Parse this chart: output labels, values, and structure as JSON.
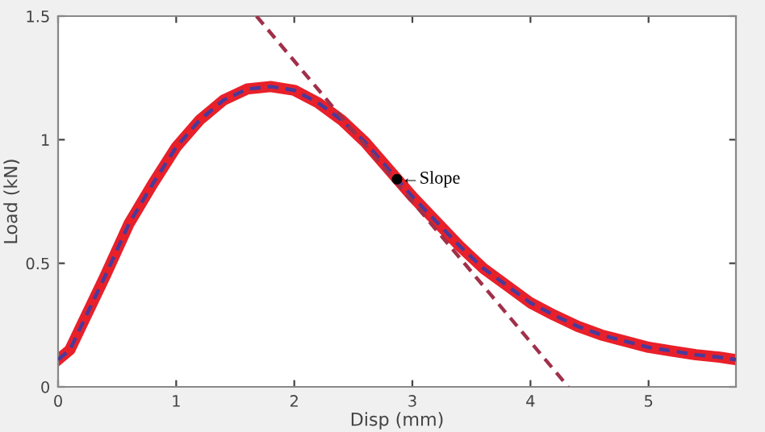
{
  "chart_data": {
    "type": "line",
    "xlabel": "Disp (mm)",
    "ylabel": "Load (kN)",
    "xlim": [
      0,
      5.74
    ],
    "ylim": [
      0,
      1.5
    ],
    "xticks": [
      0,
      1,
      2,
      3,
      4,
      5
    ],
    "yticks": [
      0,
      0.5,
      1,
      1.5
    ],
    "grid": false,
    "legend": false,
    "series": [
      {
        "color": "#e8202a",
        "line_style": "solid",
        "x": [
          0,
          0.1,
          0.2,
          0.4,
          0.6,
          0.8,
          1.0,
          1.2,
          1.4,
          1.6,
          1.8,
          2.0,
          2.2,
          2.4,
          2.6,
          2.8,
          3.0,
          3.2,
          3.4,
          3.6,
          3.8,
          4.0,
          4.2,
          4.4,
          4.6,
          4.8,
          5.0,
          5.2,
          5.4,
          5.6,
          5.74
        ],
        "values": [
          0.11,
          0.15,
          0.25,
          0.45,
          0.66,
          0.82,
          0.97,
          1.08,
          1.16,
          1.205,
          1.215,
          1.2,
          1.15,
          1.08,
          0.99,
          0.88,
          0.77,
          0.67,
          0.57,
          0.48,
          0.41,
          0.34,
          0.29,
          0.245,
          0.21,
          0.185,
          0.16,
          0.145,
          0.13,
          0.12,
          0.11
        ]
      },
      {
        "color": "#4a3a9a",
        "line_style": "dashed",
        "x": [
          0,
          0.1,
          0.2,
          0.4,
          0.6,
          0.8,
          1.0,
          1.2,
          1.4,
          1.6,
          1.8,
          2.0,
          2.2,
          2.4,
          2.6,
          2.8,
          3.0,
          3.2,
          3.4,
          3.6,
          3.8,
          4.0,
          4.2,
          4.4,
          4.6,
          4.8,
          5.0,
          5.2,
          5.4,
          5.6,
          5.74
        ],
        "values": [
          0.11,
          0.15,
          0.25,
          0.45,
          0.66,
          0.82,
          0.97,
          1.08,
          1.16,
          1.205,
          1.215,
          1.2,
          1.15,
          1.08,
          0.99,
          0.88,
          0.77,
          0.67,
          0.57,
          0.48,
          0.41,
          0.34,
          0.29,
          0.245,
          0.21,
          0.185,
          0.16,
          0.145,
          0.13,
          0.12,
          0.11
        ]
      },
      {
        "color": "#a0304a",
        "line_style": "dashed",
        "x": [
          1.68,
          4.32
        ],
        "values": [
          1.5,
          0
        ]
      },
      {
        "type": "scatter",
        "color": "#000000",
        "marker": "circle",
        "x": [
          2.87
        ],
        "values": [
          0.84
        ]
      }
    ],
    "annotations": [
      {
        "text": "←Slope",
        "x": 2.87,
        "y": 0.84
      }
    ]
  }
}
